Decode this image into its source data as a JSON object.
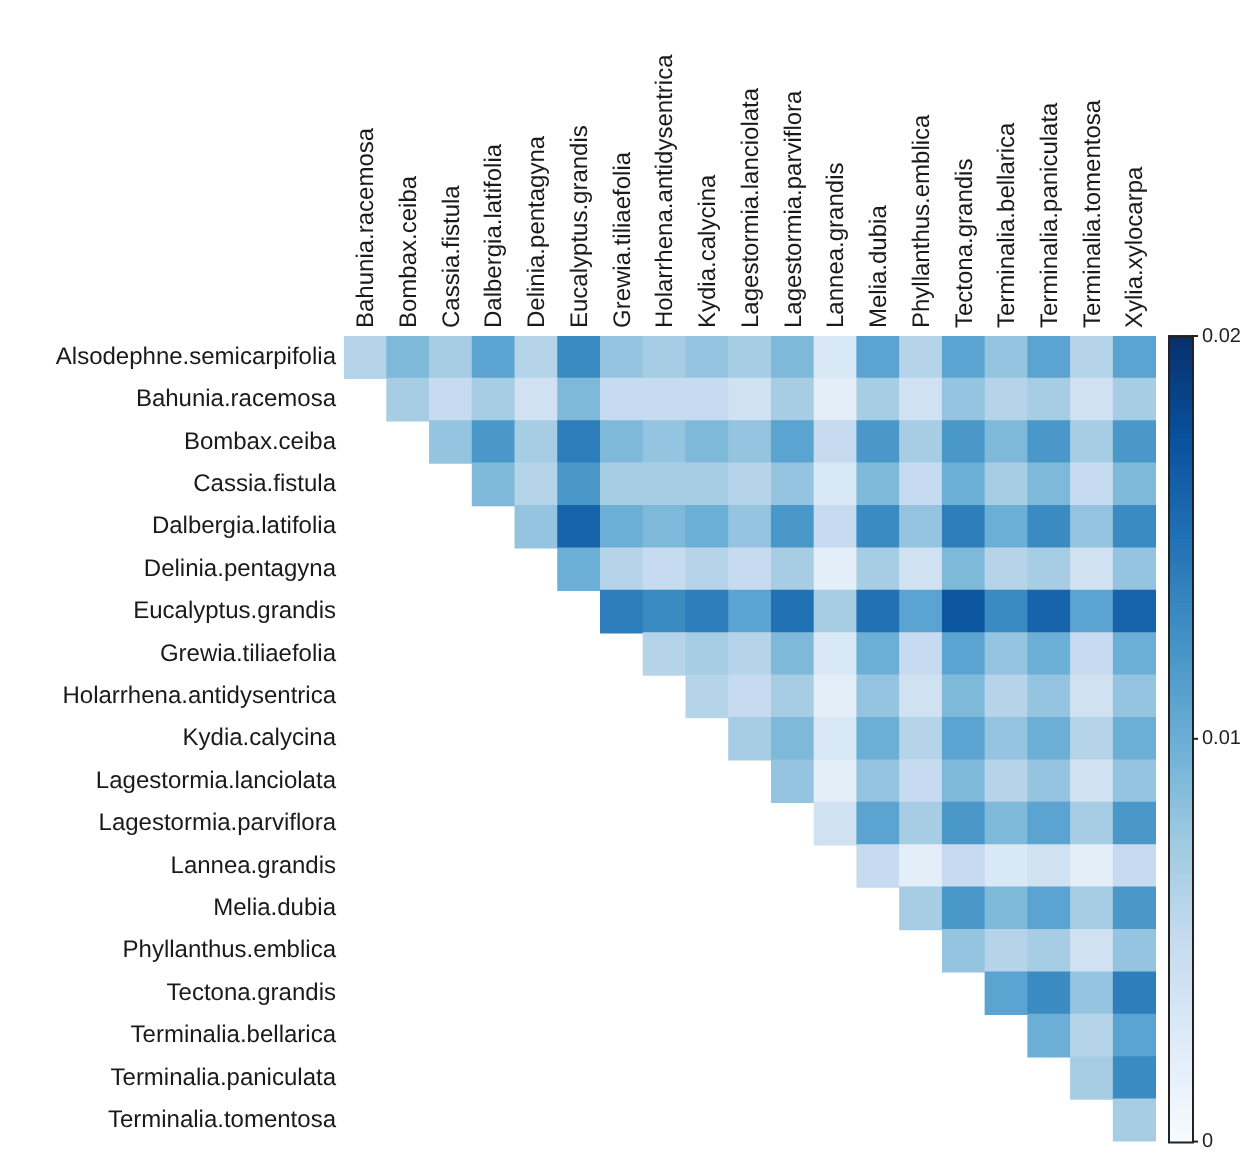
{
  "chart_data": {
    "type": "heatmap",
    "categories": [
      "Bahunia.racemosa",
      "Bombax.ceiba",
      "Cassia.fistula",
      "Dalbergia.latifolia",
      "Delinia.pentagyna",
      "Eucalyptus.grandis",
      "Grewia.tiliaefolia",
      "Holarrhena.antidysentrica",
      "Kydia.calycina",
      "Lagestormia.lanciolata",
      "Lagestormia.parviflora",
      "Lannea.grandis",
      "Melia.dubia",
      "Phyllanthus.emblica",
      "Tectona.grandis",
      "Terminalia.bellarica",
      "Terminalia.paniculata",
      "Terminalia.tomentosa",
      "Xylia.xylocarpa"
    ],
    "y_categories": [
      "Alsodephne.semicarpifolia",
      "Bahunia.racemosa",
      "Bombax.ceiba",
      "Cassia.fistula",
      "Dalbergia.latifolia",
      "Delinia.pentagyna",
      "Eucalyptus.grandis",
      "Grewia.tiliaefolia",
      "Holarrhena.antidysentrica",
      "Kydia.calycina",
      "Lagestormia.lanciolata",
      "Lagestormia.parviflora",
      "Lannea.grandis",
      "Melia.dubia",
      "Phyllanthus.emblica",
      "Tectona.grandis",
      "Terminalia.bellarica",
      "Terminalia.paniculata",
      "Terminalia.tomentosa"
    ],
    "cells": [
      [
        0.006,
        0.009,
        0.007,
        0.011,
        0.006,
        0.013,
        0.008,
        0.007,
        0.008,
        0.007,
        0.009,
        0.003,
        0.011,
        0.006,
        0.011,
        0.008,
        0.011,
        0.006,
        0.011
      ],
      [
        null,
        0.007,
        0.005,
        0.007,
        0.004,
        0.009,
        0.005,
        0.005,
        0.005,
        0.004,
        0.007,
        0.002,
        0.007,
        0.004,
        0.008,
        0.006,
        0.007,
        0.004,
        0.007
      ],
      [
        null,
        null,
        0.008,
        0.012,
        0.007,
        0.014,
        0.009,
        0.008,
        0.009,
        0.008,
        0.011,
        0.005,
        0.012,
        0.007,
        0.012,
        0.009,
        0.012,
        0.007,
        0.012
      ],
      [
        null,
        null,
        null,
        0.009,
        0.006,
        0.012,
        0.007,
        0.007,
        0.007,
        0.006,
        0.008,
        0.003,
        0.009,
        0.005,
        0.01,
        0.007,
        0.009,
        0.005,
        0.009
      ],
      [
        null,
        null,
        null,
        null,
        0.008,
        0.016,
        0.01,
        0.009,
        0.01,
        0.008,
        0.012,
        0.005,
        0.013,
        0.008,
        0.014,
        0.01,
        0.013,
        0.008,
        0.013
      ],
      [
        null,
        null,
        null,
        null,
        null,
        0.01,
        0.006,
        0.005,
        0.006,
        0.005,
        0.007,
        0.002,
        0.007,
        0.004,
        0.009,
        0.006,
        0.007,
        0.004,
        0.008
      ],
      [
        null,
        null,
        null,
        null,
        null,
        null,
        0.014,
        0.013,
        0.014,
        0.011,
        0.015,
        0.007,
        0.015,
        0.011,
        0.017,
        0.013,
        0.016,
        0.011,
        0.016
      ],
      [
        null,
        null,
        null,
        null,
        null,
        null,
        null,
        0.006,
        0.007,
        0.006,
        0.009,
        0.003,
        0.01,
        0.005,
        0.011,
        0.008,
        0.01,
        0.005,
        0.01
      ],
      [
        null,
        null,
        null,
        null,
        null,
        null,
        null,
        null,
        0.006,
        0.005,
        0.007,
        0.002,
        0.008,
        0.004,
        0.009,
        0.006,
        0.008,
        0.004,
        0.008
      ],
      [
        null,
        null,
        null,
        null,
        null,
        null,
        null,
        null,
        null,
        0.007,
        0.009,
        0.003,
        0.01,
        0.006,
        0.011,
        0.008,
        0.01,
        0.006,
        0.01
      ],
      [
        null,
        null,
        null,
        null,
        null,
        null,
        null,
        null,
        null,
        null,
        0.008,
        0.002,
        0.008,
        0.005,
        0.009,
        0.006,
        0.008,
        0.004,
        0.008
      ],
      [
        null,
        null,
        null,
        null,
        null,
        null,
        null,
        null,
        null,
        null,
        null,
        0.004,
        0.011,
        0.007,
        0.012,
        0.009,
        0.011,
        0.007,
        0.012
      ],
      [
        null,
        null,
        null,
        null,
        null,
        null,
        null,
        null,
        null,
        null,
        null,
        null,
        0.005,
        0.002,
        0.005,
        0.003,
        0.004,
        0.002,
        0.005
      ],
      [
        null,
        null,
        null,
        null,
        null,
        null,
        null,
        null,
        null,
        null,
        null,
        null,
        null,
        0.007,
        0.012,
        0.009,
        0.011,
        0.007,
        0.012
      ],
      [
        null,
        null,
        null,
        null,
        null,
        null,
        null,
        null,
        null,
        null,
        null,
        null,
        null,
        null,
        0.008,
        0.006,
        0.007,
        0.004,
        0.008
      ],
      [
        null,
        null,
        null,
        null,
        null,
        null,
        null,
        null,
        null,
        null,
        null,
        null,
        null,
        null,
        null,
        0.011,
        0.013,
        0.008,
        0.014
      ],
      [
        null,
        null,
        null,
        null,
        null,
        null,
        null,
        null,
        null,
        null,
        null,
        null,
        null,
        null,
        null,
        null,
        0.01,
        0.006,
        0.011
      ],
      [
        null,
        null,
        null,
        null,
        null,
        null,
        null,
        null,
        null,
        null,
        null,
        null,
        null,
        null,
        null,
        null,
        null,
        0.007,
        0.013
      ],
      [
        null,
        null,
        null,
        null,
        null,
        null,
        null,
        null,
        null,
        null,
        null,
        null,
        null,
        null,
        null,
        null,
        null,
        null,
        0.007
      ]
    ],
    "clim": [
      0,
      0.02
    ],
    "cticks": [
      0,
      0.01,
      0.02
    ]
  }
}
